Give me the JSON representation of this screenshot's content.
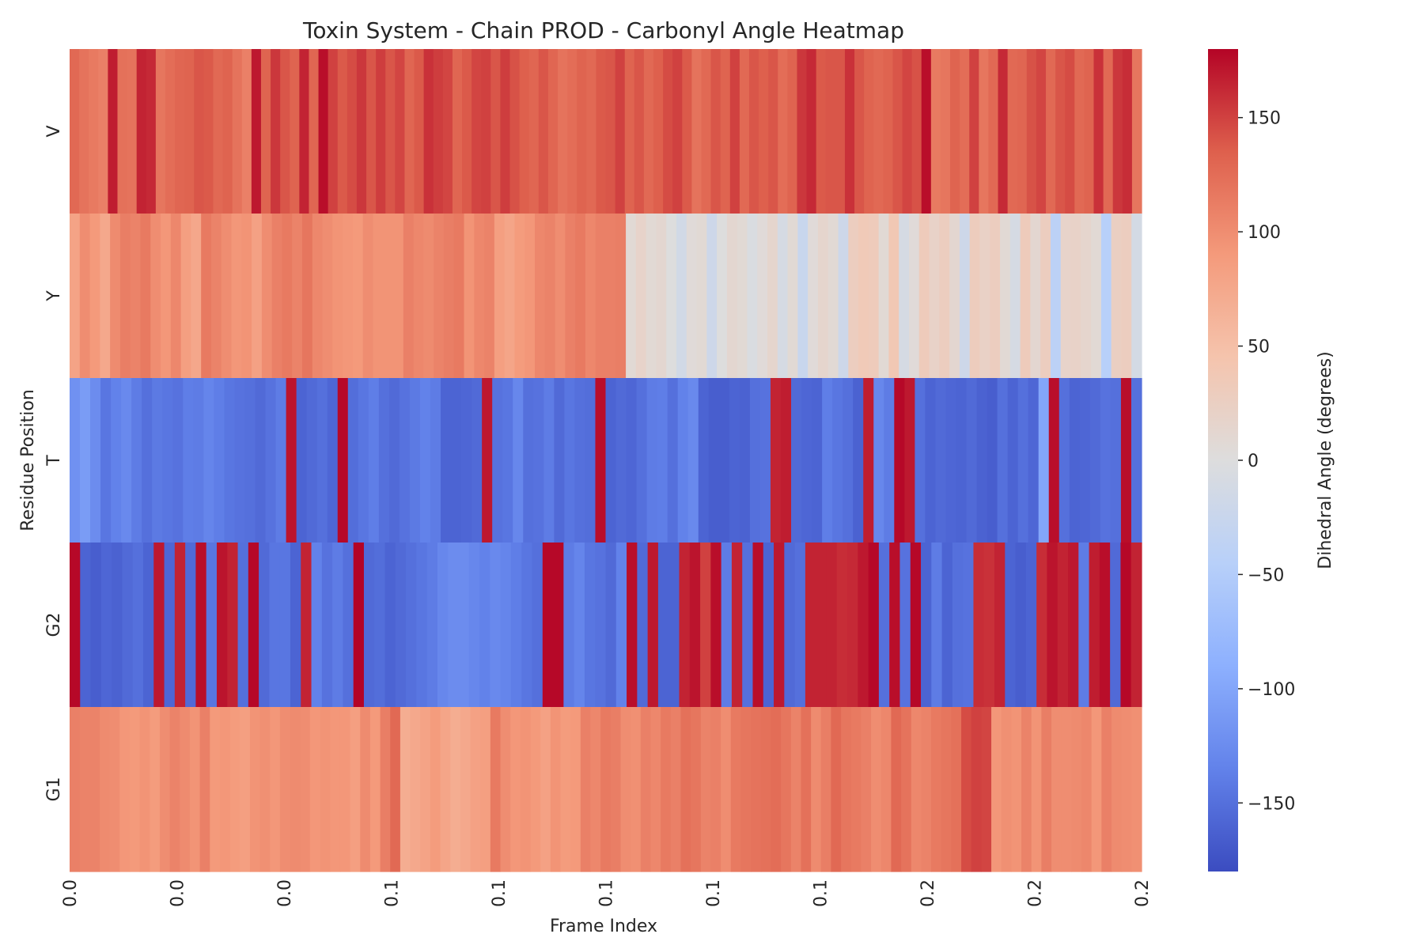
{
  "chart_data": {
    "type": "heatmap",
    "title": "Toxin System - Chain PROD - Carbonyl Angle Heatmap",
    "xlabel": "Frame Index",
    "ylabel": "Residue Position",
    "colorbar_label": "Dihedral Angle (degrees)",
    "colormap": "coolwarm",
    "vmin": -180,
    "vmax": 180,
    "colorbar_ticks": [
      -150,
      -100,
      -50,
      0,
      50,
      100,
      150
    ],
    "x_tick_labels": [
      "0.0",
      "0.0",
      "0.0",
      "0.1",
      "0.1",
      "0.1",
      "0.1",
      "0.1",
      "0.2",
      "0.2",
      "0.2"
    ],
    "rows": [
      "V",
      "Y",
      "T",
      "G2",
      "G1"
    ],
    "values": [
      [
        128,
        120,
        115,
        110,
        168,
        122,
        120,
        165,
        162,
        118,
        125,
        130,
        132,
        140,
        138,
        128,
        132,
        120,
        110,
        170,
        132,
        155,
        140,
        132,
        165,
        130,
        175,
        150,
        138,
        145,
        155,
        140,
        152,
        140,
        148,
        130,
        138,
        158,
        152,
        148,
        130,
        138,
        148,
        150,
        140,
        152,
        142,
        135,
        130,
        140,
        130,
        120,
        125,
        132,
        128,
        138,
        140,
        150,
        132,
        140,
        128,
        135,
        145,
        150,
        138,
        120,
        128,
        140,
        132,
        150,
        128,
        140,
        135,
        140,
        125,
        132,
        155,
        162,
        138,
        140,
        140,
        158,
        140,
        132,
        128,
        132,
        140,
        148,
        142,
        175,
        115,
        118,
        132,
        125,
        150,
        118,
        128,
        162,
        128,
        130,
        142,
        148,
        128,
        140,
        145,
        128,
        132,
        158,
        128,
        155,
        160,
        118
      ],
      [
        80,
        100,
        90,
        75,
        102,
        112,
        108,
        115,
        100,
        92,
        105,
        85,
        76,
        115,
        108,
        100,
        92,
        95,
        82,
        100,
        110,
        115,
        108,
        118,
        105,
        100,
        95,
        92,
        90,
        100,
        95,
        95,
        95,
        110,
        105,
        102,
        108,
        112,
        115,
        95,
        105,
        108,
        85,
        78,
        88,
        92,
        105,
        108,
        100,
        110,
        115,
        105,
        110,
        110,
        112,
        8,
        18,
        8,
        12,
        0,
        -15,
        5,
        8,
        -20,
        0,
        12,
        8,
        -5,
        5,
        15,
        -10,
        8,
        -25,
        5,
        15,
        8,
        -20,
        28,
        35,
        32,
        8,
        38,
        -10,
        5,
        32,
        20,
        28,
        12,
        -20,
        30,
        22,
        28,
        8,
        -10,
        32,
        12,
        28,
        -40,
        18,
        20,
        15,
        8,
        -45,
        25,
        28,
        -12
      ],
      [
        -120,
        -110,
        -125,
        -145,
        -135,
        -128,
        -140,
        -150,
        -142,
        -145,
        -148,
        -138,
        -140,
        -132,
        -138,
        -145,
        -148,
        -150,
        -155,
        -148,
        -140,
        172,
        -160,
        -155,
        -150,
        -158,
        178,
        -152,
        -145,
        -138,
        -150,
        -155,
        -148,
        -142,
        -135,
        -140,
        -160,
        -160,
        -158,
        -155,
        170,
        -148,
        -145,
        -130,
        -150,
        -148,
        -140,
        -155,
        -145,
        -150,
        -152,
        175,
        -160,
        -155,
        -158,
        -150,
        -140,
        -138,
        -150,
        -135,
        -128,
        -160,
        -165,
        -165,
        -160,
        -162,
        -150,
        -148,
        165,
        168,
        -155,
        -158,
        -160,
        -138,
        -145,
        -150,
        -162,
        168,
        -130,
        -140,
        178,
        170,
        -150,
        -160,
        -155,
        -158,
        -160,
        -155,
        -162,
        -165,
        -150,
        -160,
        -150,
        -158,
        -100,
        175,
        -150,
        -160,
        -158,
        -155,
        -148,
        -150,
        175,
        -150
      ],
      [
        178,
        -160,
        -165,
        -158,
        -162,
        -155,
        -150,
        -160,
        170,
        -158,
        165,
        -155,
        175,
        -145,
        172,
        165,
        -150,
        178,
        -155,
        -145,
        -145,
        -160,
        165,
        -135,
        -148,
        -140,
        -150,
        180,
        -155,
        -152,
        -160,
        -155,
        -150,
        -145,
        -140,
        -130,
        -125,
        -125,
        -130,
        -135,
        -128,
        -132,
        -138,
        -145,
        -150,
        178,
        178,
        -140,
        -132,
        -145,
        -148,
        -155,
        -135,
        175,
        -155,
        170,
        -160,
        -160,
        165,
        172,
        150,
        175,
        -140,
        165,
        -150,
        175,
        -160,
        170,
        -155,
        -150,
        165,
        165,
        165,
        160,
        162,
        170,
        178,
        -150,
        175,
        -148,
        178,
        -160,
        -140,
        -160,
        -150,
        -148,
        160,
        158,
        165,
        -160,
        -165,
        -160,
        160,
        172,
        165,
        170,
        -140,
        168,
        175,
        -155,
        178,
        165
      ],
      [
        110,
        108,
        108,
        102,
        100,
        92,
        90,
        95,
        88,
        100,
        108,
        102,
        95,
        110,
        90,
        92,
        88,
        85,
        95,
        98,
        92,
        100,
        102,
        100,
        92,
        95,
        92,
        92,
        85,
        102,
        90,
        112,
        128,
        70,
        75,
        80,
        88,
        78,
        70,
        75,
        82,
        85,
        115,
        100,
        92,
        95,
        90,
        82,
        95,
        88,
        90,
        110,
        105,
        115,
        112,
        100,
        98,
        110,
        105,
        115,
        110,
        122,
        118,
        108,
        110,
        100,
        115,
        118,
        120,
        122,
        125,
        118,
        108,
        122,
        102,
        112,
        128,
        118,
        115,
        110,
        100,
        105,
        128,
        120,
        105,
        108,
        115,
        118,
        122,
        145,
        150,
        148,
        92,
        98,
        95,
        108,
        95,
        112,
        100,
        100,
        102,
        105,
        92,
        110,
        102,
        100,
        98
      ]
    ]
  }
}
